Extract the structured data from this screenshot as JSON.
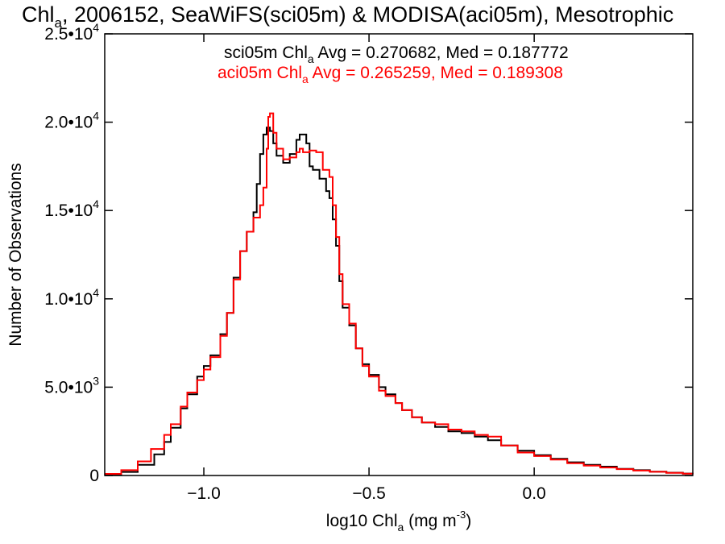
{
  "chart_data": {
    "type": "line",
    "title": {
      "pre": "Chl",
      "sub": "a",
      "post": ", 2006152, SeaWiFS(sci05m) & MODISA(aci05m), Mesotrophic"
    },
    "xlabel": {
      "pre": "log10 Chl",
      "sub": "a",
      "mid": " (mg m",
      "sup": "-3",
      "post": ")"
    },
    "ylabel": "Number of Observations",
    "xlim": [
      -1.3,
      0.48
    ],
    "ylim": [
      0,
      25000
    ],
    "x_ticks": [
      {
        "value": -1.0,
        "label": "−1.0"
      },
      {
        "value": -0.5,
        "label": "−0.5"
      },
      {
        "value": 0.0,
        "label": "0.0"
      }
    ],
    "y_ticks": [
      {
        "value": 0,
        "mant": "0",
        "exp": ""
      },
      {
        "value": 5000,
        "mant": "5.0•10",
        "exp": "3"
      },
      {
        "value": 10000,
        "mant": "1.0•10",
        "exp": "4"
      },
      {
        "value": 15000,
        "mant": "1.5•10",
        "exp": "4"
      },
      {
        "value": 20000,
        "mant": "2.0•10",
        "exp": "4"
      },
      {
        "value": 25000,
        "mant": "2.5•10",
        "exp": "4"
      }
    ],
    "grid": false,
    "annotations": [
      {
        "pre": "sci05m Chl",
        "sub": "a",
        "post": " Avg = 0.270682, Med = 0.187772",
        "color": "#000000"
      },
      {
        "pre": "aci05m Chl",
        "sub": "a",
        "post": " Avg = 0.265259, Med = 0.189308",
        "color": "#ff0000"
      }
    ],
    "series": [
      {
        "color": "#000000",
        "points": [
          [
            -1.3,
            60
          ],
          [
            -1.25,
            200
          ],
          [
            -1.2,
            600
          ],
          [
            -1.15,
            1200
          ],
          [
            -1.12,
            1900
          ],
          [
            -1.1,
            2700
          ],
          [
            -1.07,
            3800
          ],
          [
            -1.05,
            4600
          ],
          [
            -1.02,
            5600
          ],
          [
            -1.0,
            6200
          ],
          [
            -0.98,
            6800
          ],
          [
            -0.95,
            8000
          ],
          [
            -0.93,
            9200
          ],
          [
            -0.91,
            11200
          ],
          [
            -0.89,
            12700
          ],
          [
            -0.87,
            13800
          ],
          [
            -0.85,
            14900
          ],
          [
            -0.84,
            16500
          ],
          [
            -0.83,
            18200
          ],
          [
            -0.82,
            19300
          ],
          [
            -0.81,
            19700
          ],
          [
            -0.8,
            19500
          ],
          [
            -0.79,
            18800
          ],
          [
            -0.78,
            18100
          ],
          [
            -0.76,
            17700
          ],
          [
            -0.74,
            18200
          ],
          [
            -0.72,
            19000
          ],
          [
            -0.71,
            19300
          ],
          [
            -0.7,
            19300
          ],
          [
            -0.69,
            18800
          ],
          [
            -0.68,
            17500
          ],
          [
            -0.67,
            17300
          ],
          [
            -0.65,
            16800
          ],
          [
            -0.63,
            16100
          ],
          [
            -0.62,
            15700
          ],
          [
            -0.61,
            14500
          ],
          [
            -0.6,
            13000
          ],
          [
            -0.59,
            11000
          ],
          [
            -0.58,
            9500
          ],
          [
            -0.56,
            8500
          ],
          [
            -0.54,
            7200
          ],
          [
            -0.52,
            6300
          ],
          [
            -0.5,
            5700
          ],
          [
            -0.47,
            5000
          ],
          [
            -0.45,
            4600
          ],
          [
            -0.42,
            4100
          ],
          [
            -0.4,
            3700
          ],
          [
            -0.37,
            3300
          ],
          [
            -0.34,
            3000
          ],
          [
            -0.3,
            2750
          ],
          [
            -0.26,
            2500
          ],
          [
            -0.22,
            2400
          ],
          [
            -0.18,
            2200
          ],
          [
            -0.14,
            2000
          ],
          [
            -0.1,
            1700
          ],
          [
            -0.05,
            1400
          ],
          [
            0.0,
            1150
          ],
          [
            0.05,
            950
          ],
          [
            0.1,
            750
          ],
          [
            0.15,
            600
          ],
          [
            0.2,
            500
          ],
          [
            0.25,
            380
          ],
          [
            0.3,
            300
          ],
          [
            0.35,
            220
          ],
          [
            0.4,
            160
          ],
          [
            0.45,
            110
          ],
          [
            0.48,
            90
          ]
        ]
      },
      {
        "color": "#ff0000",
        "points": [
          [
            -1.3,
            90
          ],
          [
            -1.25,
            300
          ],
          [
            -1.2,
            800
          ],
          [
            -1.16,
            1500
          ],
          [
            -1.12,
            2300
          ],
          [
            -1.1,
            2900
          ],
          [
            -1.07,
            3900
          ],
          [
            -1.05,
            4700
          ],
          [
            -1.02,
            5400
          ],
          [
            -1.0,
            6000
          ],
          [
            -0.98,
            6700
          ],
          [
            -0.95,
            7900
          ],
          [
            -0.93,
            9200
          ],
          [
            -0.91,
            11100
          ],
          [
            -0.89,
            12700
          ],
          [
            -0.87,
            13800
          ],
          [
            -0.85,
            14600
          ],
          [
            -0.83,
            15300
          ],
          [
            -0.82,
            16300
          ],
          [
            -0.81,
            18500
          ],
          [
            -0.805,
            20300
          ],
          [
            -0.8,
            20500
          ],
          [
            -0.79,
            19400
          ],
          [
            -0.78,
            18500
          ],
          [
            -0.76,
            17900
          ],
          [
            -0.74,
            18000
          ],
          [
            -0.72,
            18300
          ],
          [
            -0.71,
            18500
          ],
          [
            -0.7,
            18300
          ],
          [
            -0.68,
            18400
          ],
          [
            -0.66,
            18300
          ],
          [
            -0.64,
            17300
          ],
          [
            -0.62,
            16900
          ],
          [
            -0.61,
            15300
          ],
          [
            -0.6,
            13500
          ],
          [
            -0.59,
            11400
          ],
          [
            -0.58,
            9700
          ],
          [
            -0.56,
            8600
          ],
          [
            -0.54,
            7200
          ],
          [
            -0.52,
            6200
          ],
          [
            -0.5,
            5600
          ],
          [
            -0.47,
            4800
          ],
          [
            -0.45,
            4500
          ],
          [
            -0.42,
            4100
          ],
          [
            -0.4,
            3700
          ],
          [
            -0.37,
            3300
          ],
          [
            -0.34,
            3000
          ],
          [
            -0.3,
            2900
          ],
          [
            -0.26,
            2600
          ],
          [
            -0.22,
            2500
          ],
          [
            -0.18,
            2300
          ],
          [
            -0.14,
            2200
          ],
          [
            -0.1,
            1700
          ],
          [
            -0.05,
            1300
          ],
          [
            0.0,
            1100
          ],
          [
            0.05,
            900
          ],
          [
            0.1,
            700
          ],
          [
            0.15,
            560
          ],
          [
            0.2,
            450
          ],
          [
            0.25,
            360
          ],
          [
            0.3,
            280
          ],
          [
            0.35,
            210
          ],
          [
            0.4,
            150
          ],
          [
            0.45,
            100
          ],
          [
            0.48,
            80
          ]
        ]
      }
    ]
  }
}
